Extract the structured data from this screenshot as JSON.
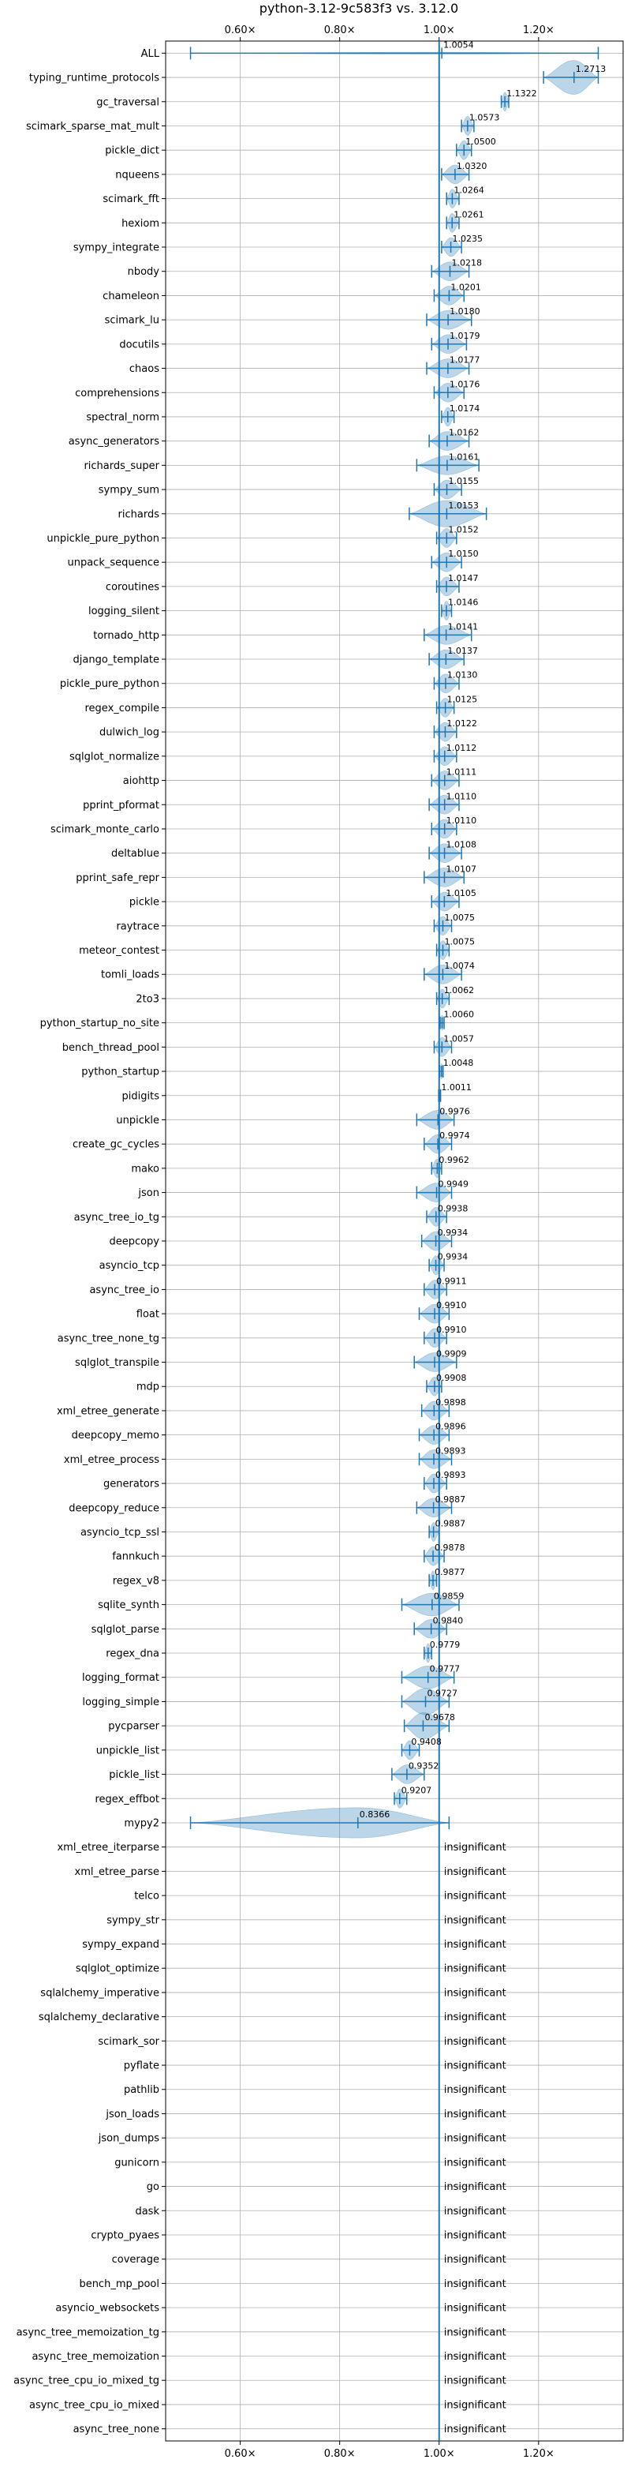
{
  "chart_data": {
    "type": "violin",
    "title": "python-3.12-9c583f3 vs. 3.12.0",
    "xlabel": "",
    "ylabel": "",
    "xlim": [
      0.45,
      1.37
    ],
    "xticks": [
      0.6,
      0.8,
      1.0,
      1.2
    ],
    "xtick_labels": [
      "0.60×",
      "0.80×",
      "1.00×",
      "1.20×"
    ],
    "grid": true,
    "reference_line": 1.0,
    "colors": {
      "violin": "#1f77b4",
      "grid": "#b0b0b0",
      "text": "#000000"
    },
    "insignificant_label": "insignificant",
    "benchmarks": [
      {
        "name": "ALL",
        "value": "1.0054",
        "min": 0.5,
        "max": 1.32,
        "width": 0.05
      },
      {
        "name": "typing_runtime_protocols",
        "value": "1.2713",
        "min": 1.21,
        "max": 1.32,
        "width": 0.9
      },
      {
        "name": "gc_traversal",
        "value": "1.1322",
        "min": 1.125,
        "max": 1.14,
        "width": 0.5
      },
      {
        "name": "scimark_sparse_mat_mult",
        "value": "1.0573",
        "min": 1.045,
        "max": 1.07,
        "width": 0.5
      },
      {
        "name": "pickle_dict",
        "value": "1.0500",
        "min": 1.035,
        "max": 1.065,
        "width": 0.5
      },
      {
        "name": "nqueens",
        "value": "1.0320",
        "min": 1.005,
        "max": 1.06,
        "width": 0.5
      },
      {
        "name": "scimark_fft",
        "value": "1.0264",
        "min": 1.015,
        "max": 1.04,
        "width": 0.5
      },
      {
        "name": "hexiom",
        "value": "1.0261",
        "min": 1.015,
        "max": 1.04,
        "width": 0.5
      },
      {
        "name": "sympy_integrate",
        "value": "1.0235",
        "min": 1.005,
        "max": 1.045,
        "width": 0.5
      },
      {
        "name": "nbody",
        "value": "1.0218",
        "min": 0.985,
        "max": 1.06,
        "width": 0.5
      },
      {
        "name": "chameleon",
        "value": "1.0201",
        "min": 0.99,
        "max": 1.05,
        "width": 0.5
      },
      {
        "name": "scimark_lu",
        "value": "1.0180",
        "min": 0.975,
        "max": 1.065,
        "width": 0.5
      },
      {
        "name": "docutils",
        "value": "1.0179",
        "min": 0.985,
        "max": 1.055,
        "width": 0.5
      },
      {
        "name": "chaos",
        "value": "1.0177",
        "min": 0.975,
        "max": 1.06,
        "width": 0.5
      },
      {
        "name": "comprehensions",
        "value": "1.0176",
        "min": 0.99,
        "max": 1.05,
        "width": 0.5
      },
      {
        "name": "spectral_norm",
        "value": "1.0174",
        "min": 1.005,
        "max": 1.03,
        "width": 0.5
      },
      {
        "name": "async_generators",
        "value": "1.0162",
        "min": 0.98,
        "max": 1.06,
        "width": 0.5
      },
      {
        "name": "richards_super",
        "value": "1.0161",
        "min": 0.955,
        "max": 1.08,
        "width": 0.5
      },
      {
        "name": "sympy_sum",
        "value": "1.0155",
        "min": 0.99,
        "max": 1.045,
        "width": 0.5
      },
      {
        "name": "richards",
        "value": "1.0153",
        "min": 0.94,
        "max": 1.095,
        "width": 0.7
      },
      {
        "name": "unpickle_pure_python",
        "value": "1.0152",
        "min": 0.995,
        "max": 1.035,
        "width": 0.5
      },
      {
        "name": "unpack_sequence",
        "value": "1.0150",
        "min": 0.985,
        "max": 1.045,
        "width": 0.5
      },
      {
        "name": "coroutines",
        "value": "1.0147",
        "min": 0.995,
        "max": 1.04,
        "width": 0.5
      },
      {
        "name": "logging_silent",
        "value": "1.0146",
        "min": 1.005,
        "max": 1.025,
        "width": 0.5
      },
      {
        "name": "tornado_http",
        "value": "1.0141",
        "min": 0.97,
        "max": 1.065,
        "width": 0.5
      },
      {
        "name": "django_template",
        "value": "1.0137",
        "min": 0.98,
        "max": 1.05,
        "width": 0.5
      },
      {
        "name": "pickle_pure_python",
        "value": "1.0130",
        "min": 0.99,
        "max": 1.04,
        "width": 0.5
      },
      {
        "name": "regex_compile",
        "value": "1.0125",
        "min": 0.995,
        "max": 1.03,
        "width": 0.5
      },
      {
        "name": "dulwich_log",
        "value": "1.0122",
        "min": 0.99,
        "max": 1.035,
        "width": 0.5
      },
      {
        "name": "sqlglot_normalize",
        "value": "1.0112",
        "min": 0.99,
        "max": 1.035,
        "width": 0.5
      },
      {
        "name": "aiohttp",
        "value": "1.0111",
        "min": 0.985,
        "max": 1.04,
        "width": 0.5
      },
      {
        "name": "pprint_pformat",
        "value": "1.0110",
        "min": 0.98,
        "max": 1.04,
        "width": 0.5
      },
      {
        "name": "scimark_monte_carlo",
        "value": "1.0110",
        "min": 0.985,
        "max": 1.035,
        "width": 0.5
      },
      {
        "name": "deltablue",
        "value": "1.0108",
        "min": 0.98,
        "max": 1.045,
        "width": 0.5
      },
      {
        "name": "pprint_safe_repr",
        "value": "1.0107",
        "min": 0.97,
        "max": 1.05,
        "width": 0.5
      },
      {
        "name": "pickle",
        "value": "1.0105",
        "min": 0.985,
        "max": 1.04,
        "width": 0.5
      },
      {
        "name": "raytrace",
        "value": "1.0075",
        "min": 0.99,
        "max": 1.025,
        "width": 0.5
      },
      {
        "name": "meteor_contest",
        "value": "1.0075",
        "min": 0.995,
        "max": 1.02,
        "width": 0.5
      },
      {
        "name": "tomli_loads",
        "value": "1.0074",
        "min": 0.97,
        "max": 1.045,
        "width": 0.5
      },
      {
        "name": "2to3",
        "value": "1.0062",
        "min": 0.995,
        "max": 1.02,
        "width": 0.5
      },
      {
        "name": "python_startup_no_site",
        "value": "1.0060",
        "min": 1.002,
        "max": 1.01,
        "width": 0.4
      },
      {
        "name": "bench_thread_pool",
        "value": "1.0057",
        "min": 0.99,
        "max": 1.025,
        "width": 0.5
      },
      {
        "name": "python_startup",
        "value": "1.0048",
        "min": 1.001,
        "max": 1.008,
        "width": 0.4
      },
      {
        "name": "pidigits",
        "value": "1.0011",
        "min": 0.999,
        "max": 1.003,
        "width": 0.3
      },
      {
        "name": "unpickle",
        "value": "0.9976",
        "min": 0.955,
        "max": 1.03,
        "width": 0.5
      },
      {
        "name": "create_gc_cycles",
        "value": "0.9974",
        "min": 0.97,
        "max": 1.025,
        "width": 0.5
      },
      {
        "name": "mako",
        "value": "0.9962",
        "min": 0.985,
        "max": 1.005,
        "width": 0.5
      },
      {
        "name": "json",
        "value": "0.9949",
        "min": 0.955,
        "max": 1.025,
        "width": 0.5
      },
      {
        "name": "async_tree_io_tg",
        "value": "0.9938",
        "min": 0.975,
        "max": 1.015,
        "width": 0.5
      },
      {
        "name": "deepcopy",
        "value": "0.9934",
        "min": 0.965,
        "max": 1.025,
        "width": 0.5
      },
      {
        "name": "asyncio_tcp",
        "value": "0.9934",
        "min": 0.98,
        "max": 1.01,
        "width": 0.5
      },
      {
        "name": "async_tree_io",
        "value": "0.9911",
        "min": 0.97,
        "max": 1.015,
        "width": 0.5
      },
      {
        "name": "float",
        "value": "0.9910",
        "min": 0.96,
        "max": 1.02,
        "width": 0.5
      },
      {
        "name": "async_tree_none_tg",
        "value": "0.9910",
        "min": 0.97,
        "max": 1.015,
        "width": 0.5
      },
      {
        "name": "sqlglot_transpile",
        "value": "0.9909",
        "min": 0.95,
        "max": 1.035,
        "width": 0.5
      },
      {
        "name": "mdp",
        "value": "0.9908",
        "min": 0.975,
        "max": 1.005,
        "width": 0.5
      },
      {
        "name": "xml_etree_generate",
        "value": "0.9898",
        "min": 0.965,
        "max": 1.02,
        "width": 0.5
      },
      {
        "name": "deepcopy_memo",
        "value": "0.9896",
        "min": 0.96,
        "max": 1.02,
        "width": 0.5
      },
      {
        "name": "xml_etree_process",
        "value": "0.9893",
        "min": 0.96,
        "max": 1.025,
        "width": 0.5
      },
      {
        "name": "generators",
        "value": "0.9893",
        "min": 0.97,
        "max": 1.015,
        "width": 0.5
      },
      {
        "name": "deepcopy_reduce",
        "value": "0.9887",
        "min": 0.955,
        "max": 1.025,
        "width": 0.5
      },
      {
        "name": "asyncio_tcp_ssl",
        "value": "0.9887",
        "min": 0.98,
        "max": 1.0,
        "width": 0.5
      },
      {
        "name": "fannkuch",
        "value": "0.9878",
        "min": 0.97,
        "max": 1.01,
        "width": 0.5
      },
      {
        "name": "regex_v8",
        "value": "0.9877",
        "min": 0.98,
        "max": 0.995,
        "width": 0.5
      },
      {
        "name": "sqlite_synth",
        "value": "0.9859",
        "min": 0.925,
        "max": 1.04,
        "width": 0.6
      },
      {
        "name": "sqlglot_parse",
        "value": "0.9840",
        "min": 0.95,
        "max": 1.015,
        "width": 0.5
      },
      {
        "name": "regex_dna",
        "value": "0.9779",
        "min": 0.97,
        "max": 0.985,
        "width": 0.5
      },
      {
        "name": "logging_format",
        "value": "0.9777",
        "min": 0.925,
        "max": 1.03,
        "width": 0.6
      },
      {
        "name": "logging_simple",
        "value": "0.9727",
        "min": 0.925,
        "max": 1.02,
        "width": 0.7
      },
      {
        "name": "pycparser",
        "value": "0.9678",
        "min": 0.93,
        "max": 1.02,
        "width": 0.7
      },
      {
        "name": "unpickle_list",
        "value": "0.9408",
        "min": 0.925,
        "max": 0.96,
        "width": 0.5
      },
      {
        "name": "pickle_list",
        "value": "0.9352",
        "min": 0.905,
        "max": 0.97,
        "width": 0.5
      },
      {
        "name": "regex_effbot",
        "value": "0.9207",
        "min": 0.91,
        "max": 0.935,
        "width": 0.5
      },
      {
        "name": "mypy2",
        "value": "0.8366",
        "min": 0.5,
        "max": 1.02,
        "width": 0.8
      },
      {
        "name": "xml_etree_iterparse",
        "value": null
      },
      {
        "name": "xml_etree_parse",
        "value": null
      },
      {
        "name": "telco",
        "value": null
      },
      {
        "name": "sympy_str",
        "value": null
      },
      {
        "name": "sympy_expand",
        "value": null
      },
      {
        "name": "sqlglot_optimize",
        "value": null
      },
      {
        "name": "sqlalchemy_imperative",
        "value": null
      },
      {
        "name": "sqlalchemy_declarative",
        "value": null
      },
      {
        "name": "scimark_sor",
        "value": null
      },
      {
        "name": "pyflate",
        "value": null
      },
      {
        "name": "pathlib",
        "value": null
      },
      {
        "name": "json_loads",
        "value": null
      },
      {
        "name": "json_dumps",
        "value": null
      },
      {
        "name": "gunicorn",
        "value": null
      },
      {
        "name": "go",
        "value": null
      },
      {
        "name": "dask",
        "value": null
      },
      {
        "name": "crypto_pyaes",
        "value": null
      },
      {
        "name": "coverage",
        "value": null
      },
      {
        "name": "bench_mp_pool",
        "value": null
      },
      {
        "name": "asyncio_websockets",
        "value": null
      },
      {
        "name": "async_tree_memoization_tg",
        "value": null
      },
      {
        "name": "async_tree_memoization",
        "value": null
      },
      {
        "name": "async_tree_cpu_io_mixed_tg",
        "value": null
      },
      {
        "name": "async_tree_cpu_io_mixed",
        "value": null
      },
      {
        "name": "async_tree_none",
        "value": null
      }
    ]
  }
}
